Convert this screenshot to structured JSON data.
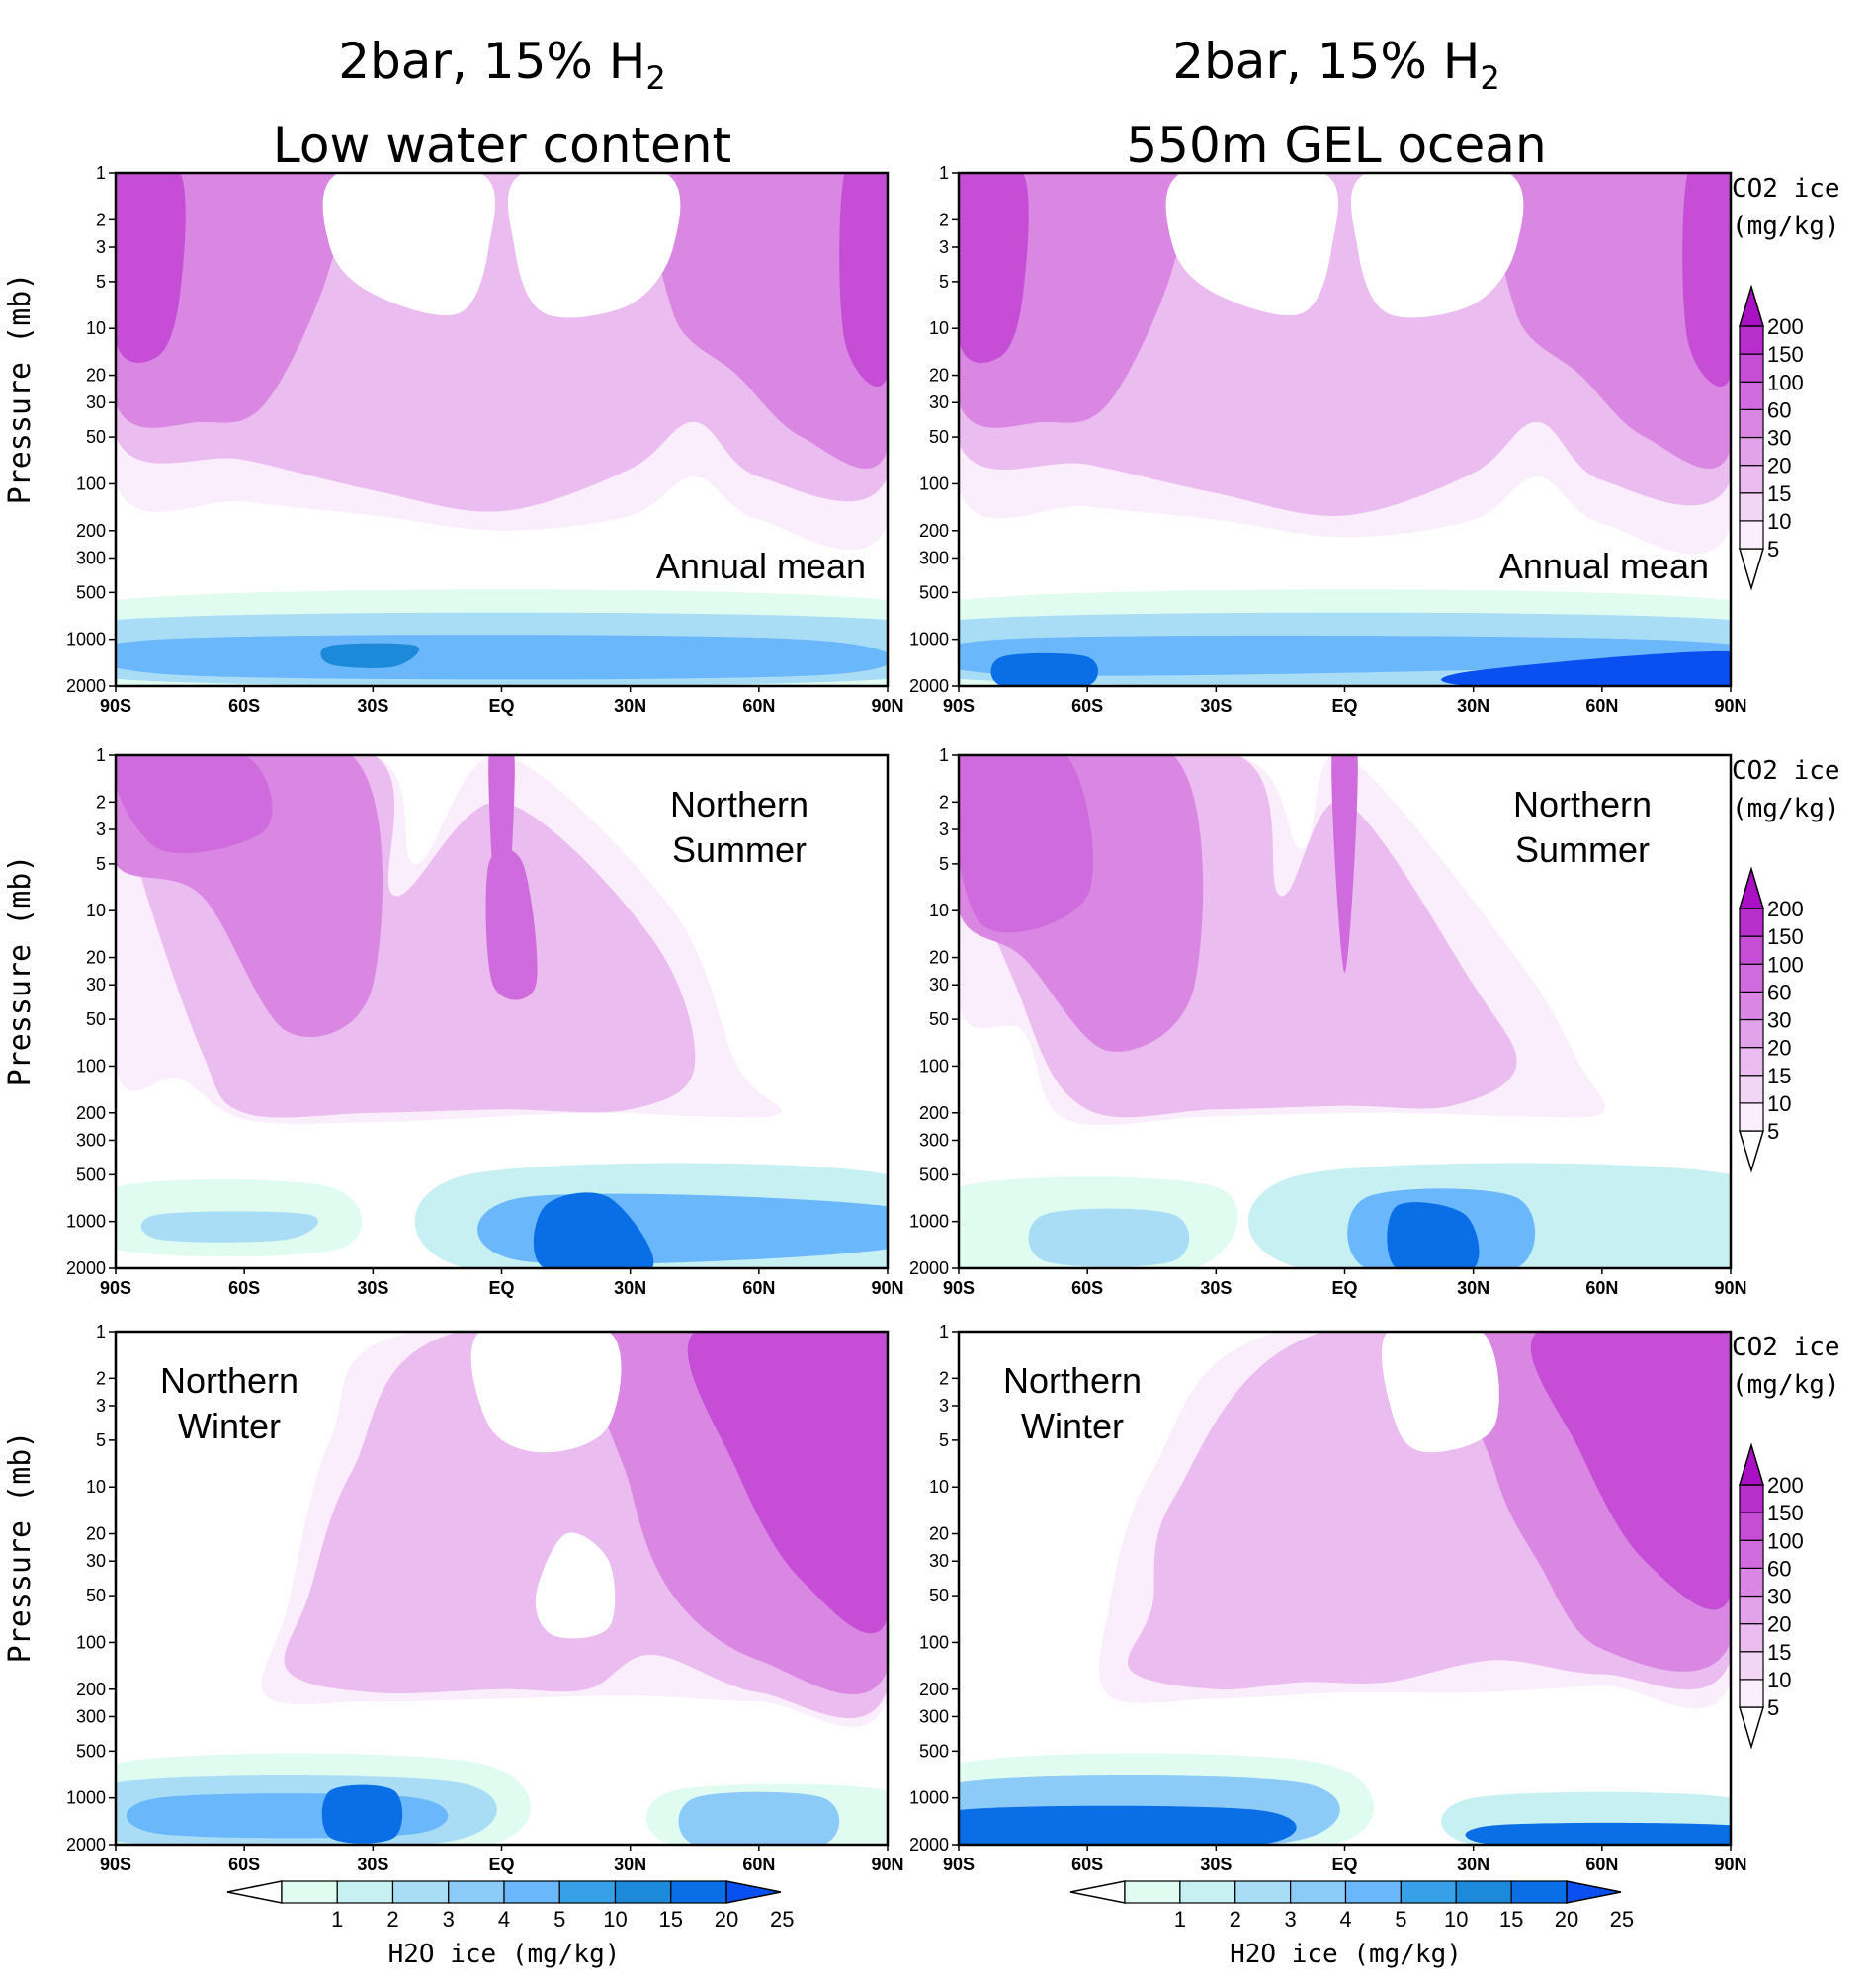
{
  "columns": [
    {
      "title_main": "2bar, 15% H",
      "title_sub": "2",
      "title_line2": "Low water content"
    },
    {
      "title_main": "2bar, 15% H",
      "title_sub": "2",
      "title_line2": "550m GEL ocean"
    }
  ],
  "chart_data": {
    "type": "heatmap",
    "description_axes": {
      "xlabel": "",
      "ylabel": "Pressure (mb)",
      "x_ticks": [
        "90S",
        "60S",
        "30S",
        "EQ",
        "30N",
        "60N",
        "90N"
      ],
      "y_ticks": [
        "1",
        "2",
        "3",
        "5",
        "10",
        "20",
        "30",
        "50",
        "100",
        "200",
        "300",
        "500",
        "1000",
        "2000"
      ],
      "x_range": [
        -90,
        90
      ],
      "y_range": [
        1,
        2000
      ],
      "y_scale": "log"
    },
    "panels": [
      {
        "row": 0,
        "col": 0,
        "label": "Annual mean",
        "label_pos": "bottom-right"
      },
      {
        "row": 0,
        "col": 1,
        "label": "Annual mean",
        "label_pos": "bottom-right"
      },
      {
        "row": 1,
        "col": 0,
        "label": "Northern Summer",
        "label_pos": "top-right"
      },
      {
        "row": 1,
        "col": 1,
        "label": "Northern Summer",
        "label_pos": "top-right"
      },
      {
        "row": 2,
        "col": 0,
        "label": "Northern Winter",
        "label_pos": "top-left"
      },
      {
        "row": 2,
        "col": 1,
        "label": "Northern Winter",
        "label_pos": "top-left"
      }
    ],
    "co2_colorbar": {
      "title_line1": "CO2 ice",
      "title_line2": "(mg/kg)",
      "levels": [
        "5",
        "10",
        "15",
        "20",
        "30",
        "60",
        "100",
        "150",
        "200"
      ],
      "colors": [
        "#ffffff",
        "#fbeefc",
        "#f3d6f6",
        "#ebbcef",
        "#e2a2ea",
        "#d987e3",
        "#cf6bdc",
        "#c64ed6",
        "#b82ecd",
        "#aa10c4"
      ]
    },
    "h2o_colorbar": {
      "title": "H2O ice (mg/kg)",
      "levels": [
        "1",
        "2",
        "3",
        "4",
        "5",
        "10",
        "15",
        "20",
        "25"
      ],
      "colors": [
        "#ffffff",
        "#e0fbf0",
        "#c6f0f2",
        "#a9ddf5",
        "#8ccbf8",
        "#6ab7fb",
        "#36a0e8",
        "#1c8ad8",
        "#0a6ee6",
        "#0a50f0"
      ]
    }
  }
}
